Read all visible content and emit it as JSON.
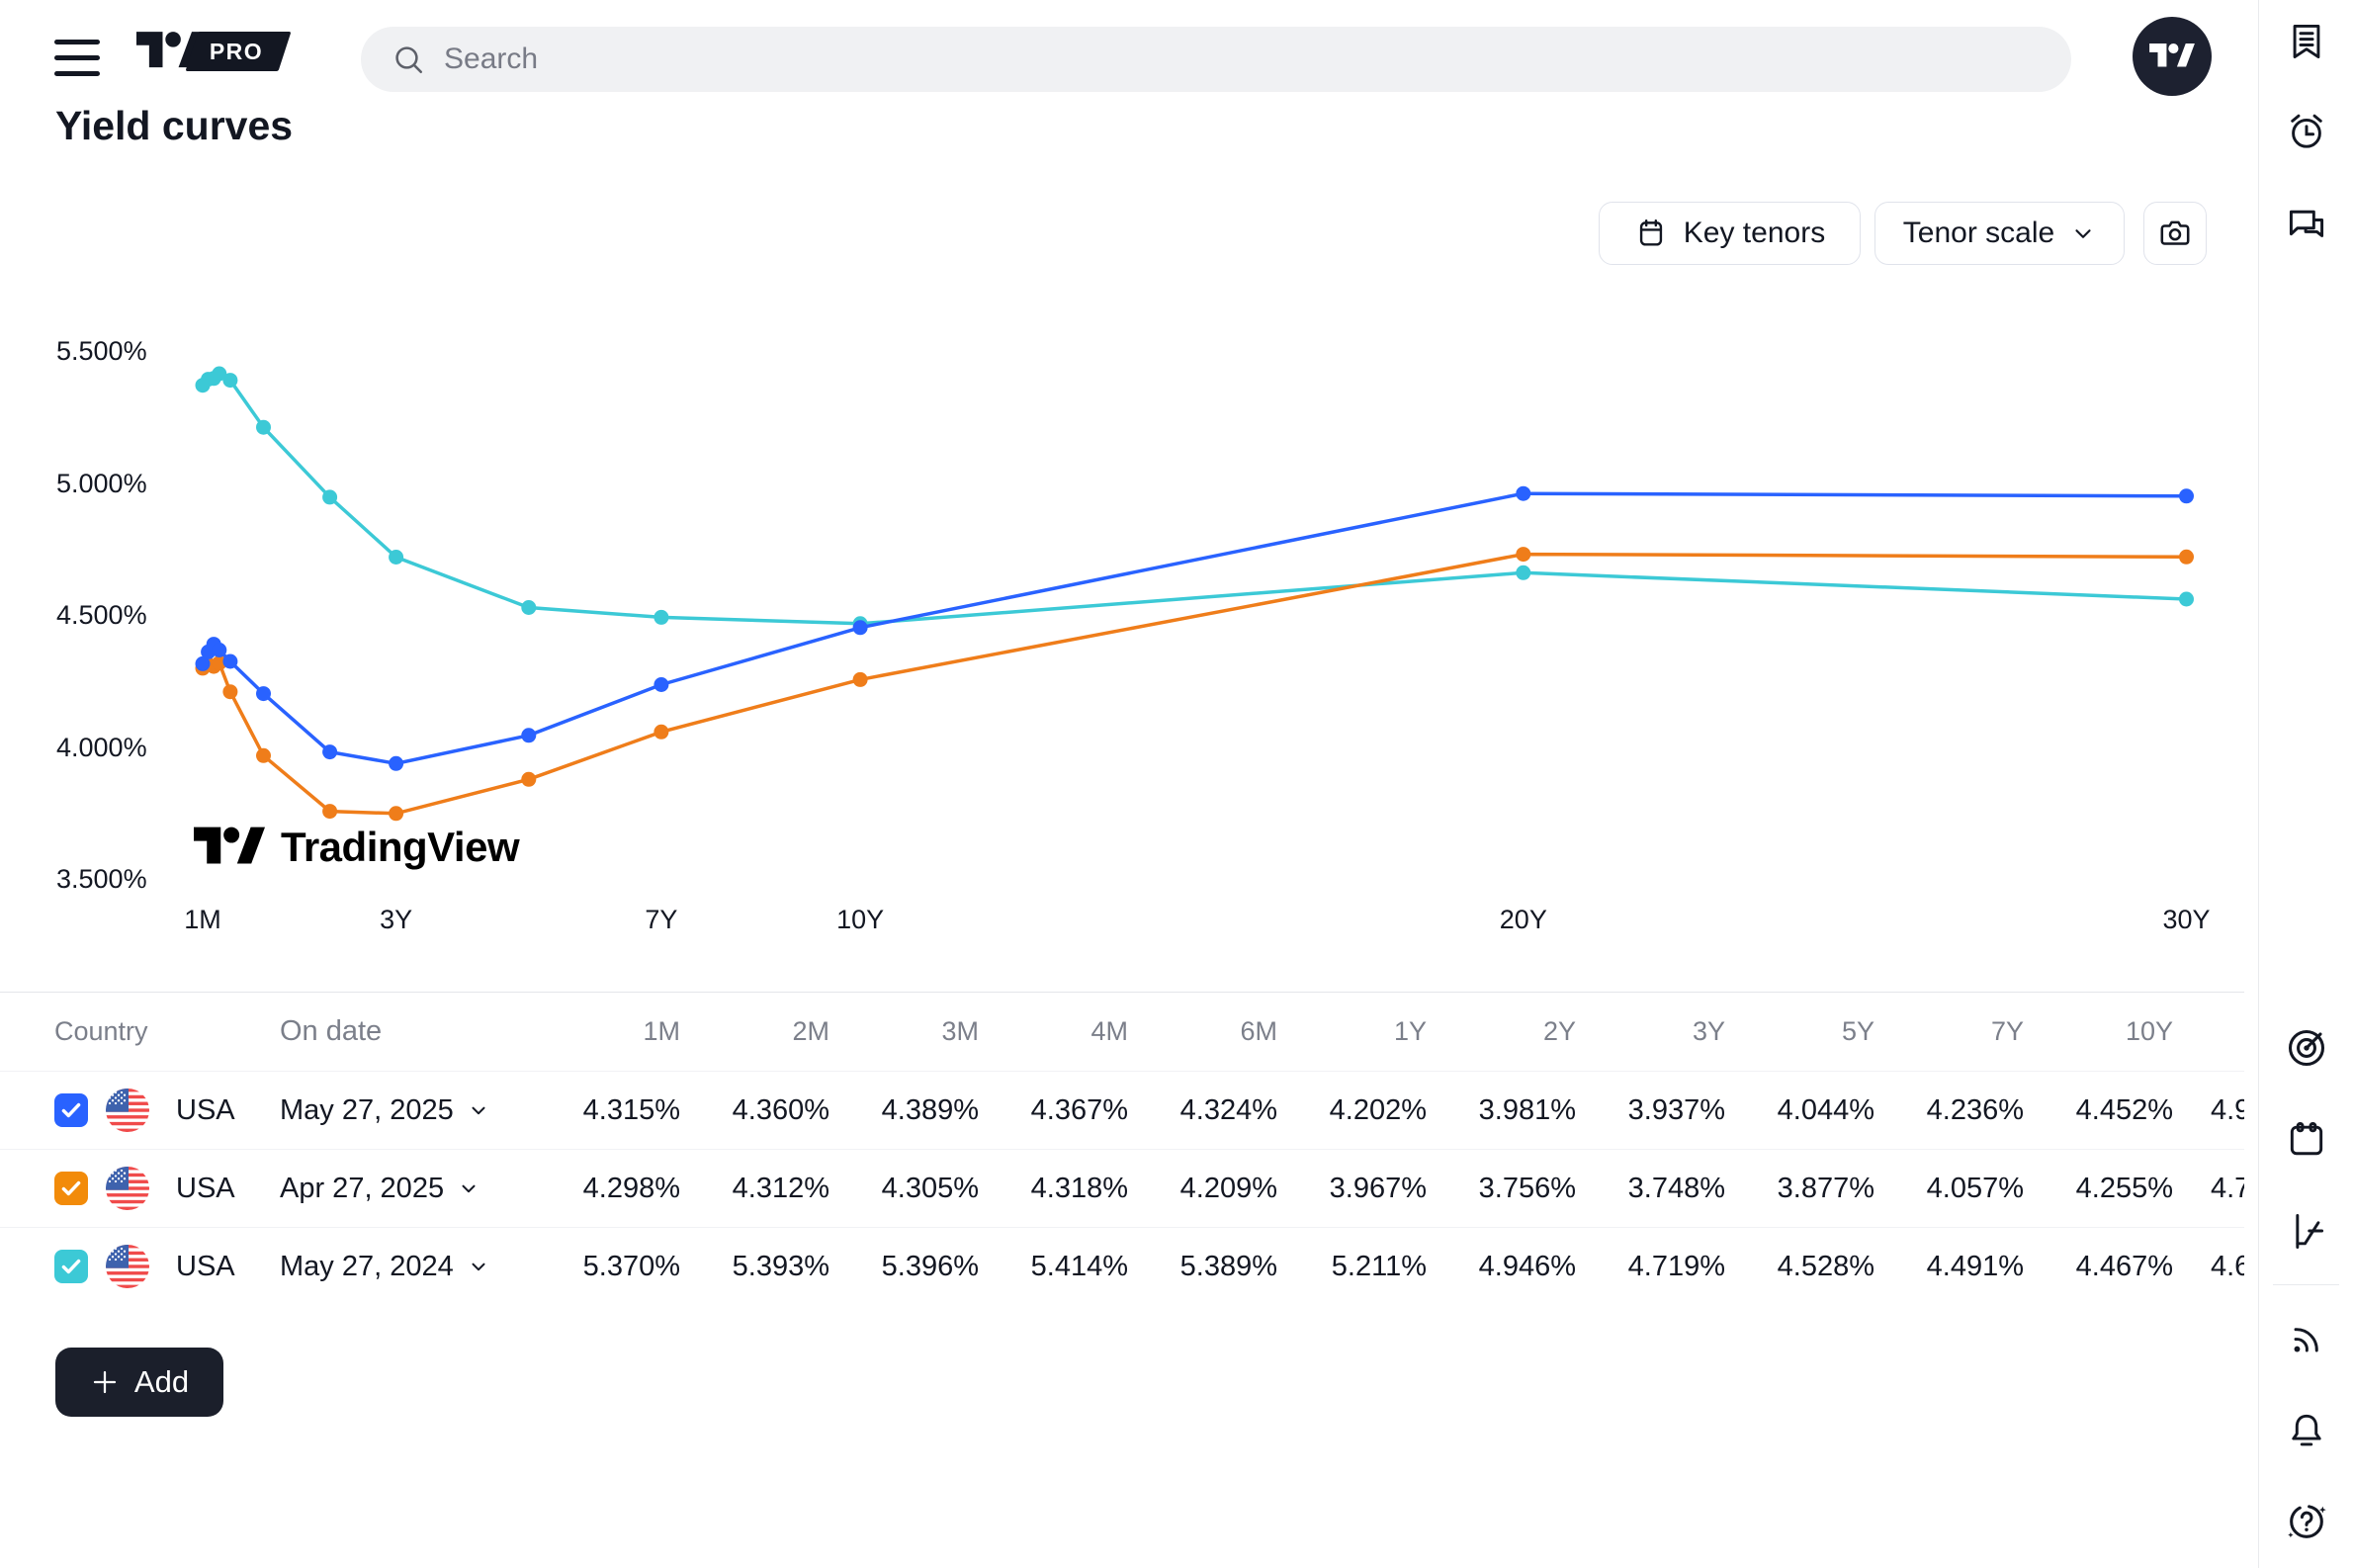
{
  "topbar": {
    "pro_badge": "PRO",
    "search_placeholder": "Search"
  },
  "page": {
    "title": "Yield curves"
  },
  "controls": {
    "key_tenors_label": "Key tenors",
    "tenor_scale_label": "Tenor scale"
  },
  "chart_data": {
    "type": "line",
    "title": "Yield curves",
    "watermark": "TradingView",
    "x_axis": {
      "scale": "linear-years",
      "tick_labels": [
        "1M",
        "3Y",
        "7Y",
        "10Y",
        "20Y",
        "30Y"
      ],
      "tick_years": [
        0.0833,
        3,
        7,
        10,
        20,
        30
      ]
    },
    "y_axis": {
      "tick_labels": [
        "5.500%",
        "5.000%",
        "4.500%",
        "4.000%",
        "3.500%"
      ],
      "tick_values": [
        5.5,
        5.0,
        4.5,
        4.0,
        3.5
      ],
      "ylim": [
        3.45,
        5.65
      ]
    },
    "grid": false,
    "legend_position": "none",
    "tenors": [
      "1M",
      "2M",
      "3M",
      "4M",
      "6M",
      "1Y",
      "2Y",
      "3Y",
      "5Y",
      "7Y",
      "10Y",
      "20Y",
      "30Y"
    ],
    "tenor_years": [
      0.0833,
      0.1667,
      0.25,
      0.3333,
      0.5,
      1,
      2,
      3,
      5,
      7,
      10,
      20,
      30
    ],
    "series": [
      {
        "name": "USA May 27, 2024",
        "color": "#3CC9D6",
        "values": [
          5.37,
          5.393,
          5.396,
          5.414,
          5.389,
          5.211,
          4.946,
          4.719,
          4.528,
          4.491,
          4.467,
          4.66,
          4.56
        ]
      },
      {
        "name": "USA Apr 27, 2025",
        "color": "#EF7D1A",
        "values": [
          4.298,
          4.312,
          4.305,
          4.318,
          4.209,
          3.967,
          3.756,
          3.748,
          3.877,
          4.057,
          4.255,
          4.73,
          4.72
        ]
      },
      {
        "name": "USA May 27, 2025",
        "color": "#2962FF",
        "values": [
          4.315,
          4.36,
          4.389,
          4.367,
          4.324,
          4.202,
          3.981,
          3.937,
          4.044,
          4.236,
          4.452,
          4.96,
          4.95
        ]
      }
    ]
  },
  "table": {
    "headers": [
      "Country",
      "On date",
      "1M",
      "2M",
      "3M",
      "4M",
      "6M",
      "1Y",
      "2Y",
      "3Y",
      "5Y",
      "7Y",
      "10Y"
    ],
    "rows": [
      {
        "checked": true,
        "checkbox_color": "#2962FF",
        "country": "USA",
        "date": "May 27, 2025",
        "values": [
          "4.315%",
          "4.360%",
          "4.389%",
          "4.367%",
          "4.324%",
          "4.202%",
          "3.981%",
          "3.937%",
          "4.044%",
          "4.236%",
          "4.452%"
        ],
        "clipped_value": "4.9"
      },
      {
        "checked": true,
        "checkbox_color": "#F28B0A",
        "country": "USA",
        "date": "Apr 27, 2025",
        "values": [
          "4.298%",
          "4.312%",
          "4.305%",
          "4.318%",
          "4.209%",
          "3.967%",
          "3.756%",
          "3.748%",
          "3.877%",
          "4.057%",
          "4.255%"
        ],
        "clipped_value": "4.7"
      },
      {
        "checked": true,
        "checkbox_color": "#3CC9D6",
        "country": "USA",
        "date": "May 27, 2024",
        "values": [
          "5.370%",
          "5.393%",
          "5.396%",
          "5.414%",
          "5.389%",
          "5.211%",
          "4.946%",
          "4.719%",
          "4.528%",
          "4.491%",
          "4.467%"
        ],
        "clipped_value": "4.6"
      }
    ],
    "add_button_label": "Add"
  },
  "sidebar": {
    "icons_top": [
      "watchlist",
      "alerts",
      "chat"
    ],
    "icons_bottom": [
      "screener",
      "calendar",
      "bonds",
      "news",
      "notifications",
      "help"
    ]
  },
  "colors": {
    "accent_blue": "#2962FF",
    "accent_orange": "#EF7D1A",
    "accent_cyan": "#3CC9D6",
    "text_primary": "#131722",
    "text_secondary": "#7B7F8A",
    "border": "#E0E3EB"
  }
}
